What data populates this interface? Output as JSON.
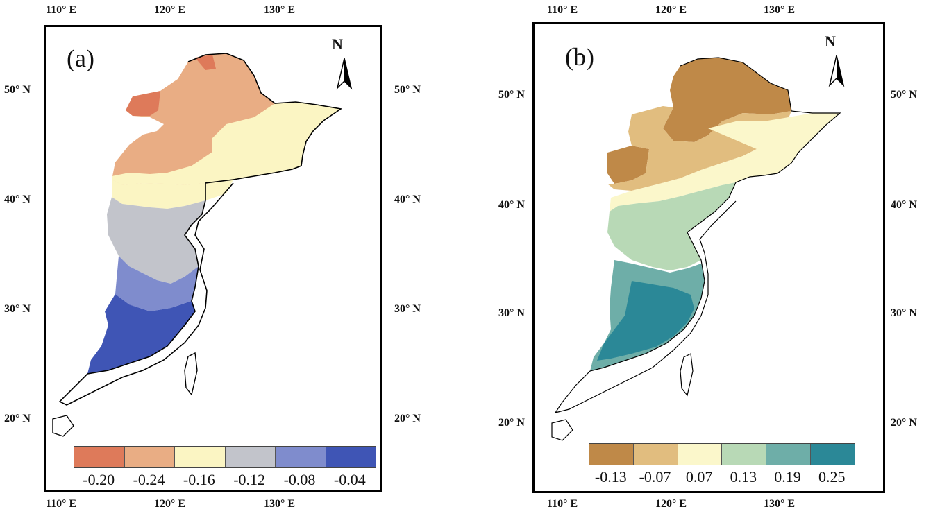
{
  "panels": [
    {
      "label": "(a)",
      "lon_ticks": [
        "110° E",
        "120° E",
        "130° E"
      ],
      "lat_ticks": [
        "50° N",
        "40° N",
        "30° N",
        "20° N"
      ],
      "north_arrow": "N",
      "legend": {
        "labels": [
          "-0.20",
          "-0.24",
          "-0.16",
          "-0.12",
          "-0.08",
          "-0.04"
        ],
        "colors": [
          "#de7a5a",
          "#e9ad84",
          "#fbf5c3",
          "#c2c4cb",
          "#7f8ccd",
          "#3f55b5"
        ]
      }
    },
    {
      "label": "(b)",
      "lon_ticks": [
        "110° E",
        "120° E",
        "130° E"
      ],
      "lat_ticks": [
        "50° N",
        "40° N",
        "30° N",
        "20° N"
      ],
      "north_arrow": "N",
      "legend": {
        "labels": [
          "-0.13",
          "-0.07",
          "0.07",
          "0.13",
          "0.19",
          "0.25"
        ],
        "colors": [
          "#bf8948",
          "#e1bd7f",
          "#fbf7cb",
          "#b8d9b6",
          "#6eaea8",
          "#2b8897"
        ]
      }
    }
  ]
}
